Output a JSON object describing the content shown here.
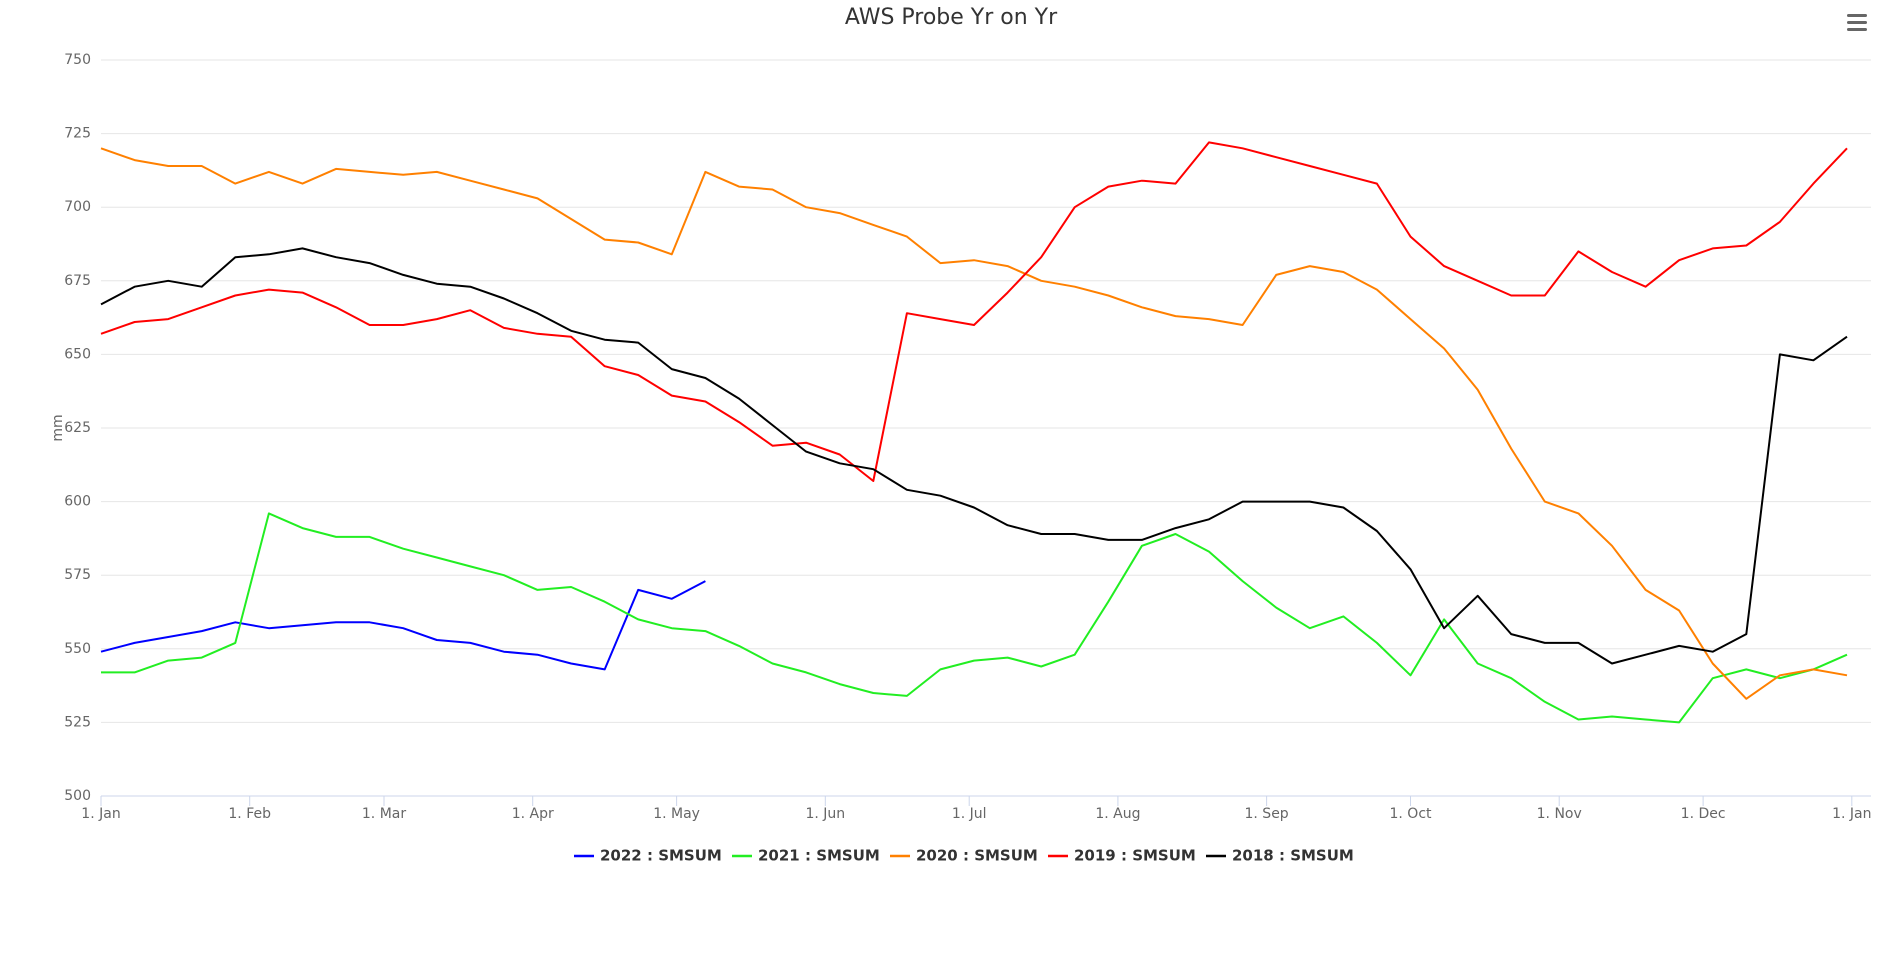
{
  "chart_data": {
    "type": "line",
    "title": "AWS Probe Yr on Yr",
    "y_label": "mm",
    "x": [
      0,
      7,
      14,
      21,
      28,
      35,
      42,
      49,
      56,
      63,
      70,
      77,
      84,
      91,
      98,
      105,
      112,
      119,
      126,
      133,
      140,
      147,
      154,
      161,
      168,
      175,
      182,
      189,
      196,
      203,
      210,
      217,
      224,
      231,
      238,
      245,
      252,
      259,
      266,
      273,
      280,
      287,
      294,
      301,
      308,
      315,
      322,
      329,
      336,
      343,
      350,
      357,
      364
    ],
    "series": [
      {
        "name": "2022 : SMSUM",
        "color": "#0000ff",
        "values": [
          549,
          552,
          554,
          556,
          559,
          557,
          558,
          559,
          559,
          557,
          553,
          552,
          549,
          548,
          545,
          543,
          570,
          567,
          573,
          null,
          null,
          null,
          null,
          null,
          null,
          null,
          null,
          null,
          null,
          null,
          null,
          null,
          null,
          null,
          null,
          null,
          null,
          null,
          null,
          null,
          null,
          null,
          null,
          null,
          null,
          null,
          null,
          null,
          null,
          null,
          null,
          null,
          null
        ]
      },
      {
        "name": "2021 : SMSUM",
        "color": "#22ee22",
        "values": [
          542,
          542,
          546,
          547,
          552,
          596,
          591,
          588,
          588,
          584,
          581,
          578,
          575,
          570,
          571,
          566,
          560,
          557,
          556,
          551,
          545,
          542,
          538,
          535,
          534,
          543,
          546,
          547,
          544,
          548,
          566,
          585,
          589,
          583,
          573,
          564,
          557,
          561,
          552,
          541,
          560,
          545,
          540,
          532,
          526,
          527,
          526,
          525,
          540,
          543,
          540,
          543,
          548
        ]
      },
      {
        "name": "2020 : SMSUM",
        "color": "#ff8000",
        "values": [
          720,
          716,
          714,
          714,
          708,
          712,
          708,
          713,
          712,
          711,
          712,
          709,
          706,
          703,
          696,
          689,
          688,
          684,
          712,
          707,
          706,
          700,
          698,
          694,
          690,
          681,
          682,
          680,
          675,
          673,
          670,
          666,
          663,
          662,
          660,
          677,
          680,
          678,
          672,
          662,
          652,
          638,
          618,
          600,
          596,
          585,
          570,
          563,
          545,
          533,
          541,
          543,
          541
        ]
      },
      {
        "name": "2019 : SMSUM",
        "color": "#ff0000",
        "values": [
          657,
          661,
          662,
          666,
          670,
          672,
          671,
          666,
          660,
          660,
          662,
          665,
          659,
          657,
          656,
          646,
          643,
          636,
          634,
          627,
          619,
          620,
          616,
          607,
          664,
          662,
          660,
          671,
          683,
          700,
          707,
          709,
          708,
          722,
          720,
          717,
          714,
          711,
          708,
          690,
          680,
          675,
          670,
          670,
          685,
          678,
          673,
          682,
          686,
          687,
          695,
          708,
          720
        ]
      },
      {
        "name": "2018 : SMSUM",
        "color": "#000000",
        "values": [
          667,
          673,
          675,
          673,
          683,
          684,
          686,
          683,
          681,
          677,
          674,
          673,
          669,
          664,
          658,
          655,
          654,
          645,
          642,
          635,
          626,
          617,
          613,
          611,
          604,
          602,
          598,
          592,
          589,
          589,
          587,
          587,
          591,
          594,
          600,
          600,
          600,
          598,
          590,
          577,
          557,
          568,
          555,
          552,
          552,
          545,
          548,
          551,
          549,
          555,
          650,
          648,
          656
        ]
      }
    ],
    "xlim": [
      0,
      369
    ],
    "xticks": [
      {
        "value": 0,
        "label": "1. Jan"
      },
      {
        "value": 31,
        "label": "1. Feb"
      },
      {
        "value": 59,
        "label": "1. Mar"
      },
      {
        "value": 90,
        "label": "1. Apr"
      },
      {
        "value": 120,
        "label": "1. May"
      },
      {
        "value": 151,
        "label": "1. Jun"
      },
      {
        "value": 181,
        "label": "1. Jul"
      },
      {
        "value": 212,
        "label": "1. Aug"
      },
      {
        "value": 243,
        "label": "1. Sep"
      },
      {
        "value": 273,
        "label": "1. Oct"
      },
      {
        "value": 304,
        "label": "1. Nov"
      },
      {
        "value": 334,
        "label": "1. Dec"
      },
      {
        "value": 365,
        "label": "1. Jan"
      }
    ],
    "ylim": [
      500,
      750
    ],
    "yticks": [
      500,
      525,
      550,
      575,
      600,
      625,
      650,
      675,
      700,
      725,
      750
    ],
    "grid": true,
    "legend": "bottom"
  }
}
